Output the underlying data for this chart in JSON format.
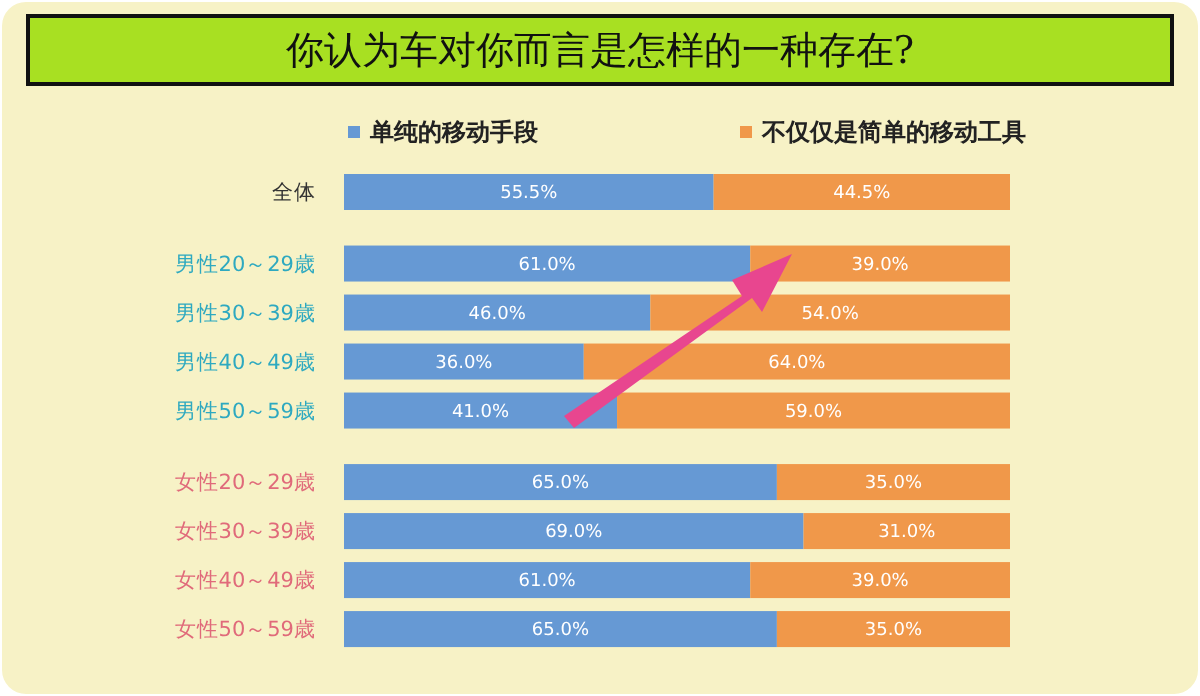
{
  "chart_data": {
    "type": "bar",
    "orientation": "horizontal",
    "stacked": true,
    "title": "你认为车对你而言是怎样的一种存在?",
    "categories": [
      "全体",
      null,
      "男性20～29歳",
      "男性30～39歳",
      "男性40～49歳",
      "男性50～59歳",
      null,
      "女性20～29歳",
      "女性30～39歳",
      "女性40～49歳",
      "女性50～59歳"
    ],
    "xlim": [
      0,
      100
    ],
    "tick_labels": "y",
    "legend": "top",
    "series": [
      {
        "name": "单纯的移动手段",
        "color": "#6699d4",
        "values": [
          55.5,
          null,
          61.0,
          46.0,
          36.0,
          41.0,
          null,
          65.0,
          69.0,
          61.0,
          65.0
        ],
        "value_labels": [
          "55.5%",
          null,
          "61.0%",
          "46.0%",
          "36.0%",
          "41.0%",
          null,
          "65.0%",
          "69.0%",
          "61.0%",
          "65.0%"
        ]
      },
      {
        "name": "不仅仅是简单的移动工具",
        "color": "#f0984a",
        "values": [
          44.5,
          null,
          39.0,
          54.0,
          64.0,
          59.0,
          null,
          35.0,
          31.0,
          39.0,
          35.0
        ],
        "value_labels": [
          "44.5%",
          null,
          "39.0%",
          "54.0%",
          "64.0%",
          "59.0%",
          null,
          "35.0%",
          "31.0%",
          "39.0%",
          "35.0%"
        ]
      }
    ]
  }
}
